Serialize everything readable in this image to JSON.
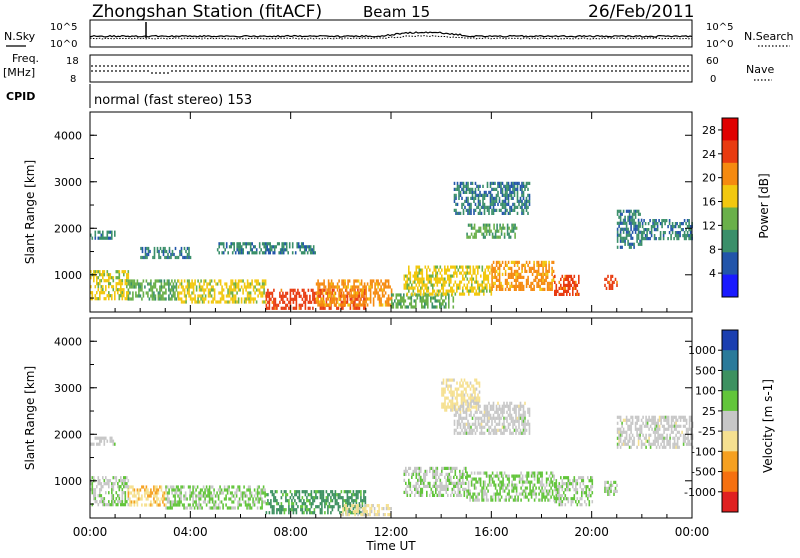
{
  "header": {
    "station": "Zhongshan Station (fitACF)",
    "beam": "Beam 15",
    "date": "26/Feb/2011"
  },
  "top_panel": {
    "noise_left_label": "N.Sky",
    "noise_right_label": "N.Search",
    "noise_ticks_left": [
      "10^5",
      "10^0"
    ],
    "noise_ticks_right": [
      "10^5",
      "10^0"
    ],
    "freq_label": "Freq.",
    "freq_unit": "[MHz]",
    "freq_ticks": [
      "18",
      "8"
    ],
    "nave_label": "Nave",
    "nave_ticks": [
      "60",
      "0"
    ],
    "cpid_label": "CPID",
    "cpid_text": "normal (fast stereo) 153"
  },
  "x_axis": {
    "label": "Time UT",
    "ticks": [
      "00:00",
      "04:00",
      "08:00",
      "12:00",
      "16:00",
      "20:00",
      "00:00"
    ]
  },
  "colors": {
    "power_scale": [
      "#1a1aff",
      "#2255aa",
      "#3a8f6a",
      "#6ab04a",
      "#f2c80f",
      "#f58a10",
      "#e83b10",
      "#e00000"
    ],
    "velocity_scale": [
      "#1b3fb0",
      "#2a7a9a",
      "#3d9160",
      "#62c53a",
      "#c7c7c7",
      "#f5e090",
      "#f5a020",
      "#f57010",
      "#e02020"
    ]
  },
  "chart_data": [
    {
      "type": "heatmap",
      "title": "",
      "quantity": "Power",
      "xlabel": "Time UT",
      "ylabel": "Slant Range [km]",
      "xlim": [
        0,
        24
      ],
      "ylim": [
        200,
        4500
      ],
      "yticks": [
        "1000",
        "2000",
        "3000",
        "4000"
      ],
      "colorbar": {
        "label": "Power [dB]",
        "ticks": [
          "4",
          "8",
          "12",
          "16",
          "20",
          "24",
          "28"
        ],
        "range": [
          0,
          30
        ]
      },
      "regions": [
        {
          "t": [
            0.0,
            1.0
          ],
          "range": [
            1800,
            1950
          ],
          "value": 8
        },
        {
          "t": [
            0.0,
            1.5
          ],
          "range": [
            500,
            1100
          ],
          "value": 16
        },
        {
          "t": [
            1.5,
            3.5
          ],
          "range": [
            450,
            900
          ],
          "value": 12
        },
        {
          "t": [
            2.0,
            4.0
          ],
          "range": [
            1400,
            1600
          ],
          "value": 8
        },
        {
          "t": [
            3.5,
            7.0
          ],
          "range": [
            400,
            900
          ],
          "value": 16
        },
        {
          "t": [
            5.0,
            9.0
          ],
          "range": [
            1500,
            1700
          ],
          "value": 8
        },
        {
          "t": [
            7.0,
            11.0
          ],
          "range": [
            250,
            700
          ],
          "value": 24
        },
        {
          "t": [
            9.0,
            12.0
          ],
          "range": [
            350,
            900
          ],
          "value": 20
        },
        {
          "t": [
            12.0,
            14.5
          ],
          "range": [
            300,
            600
          ],
          "value": 12
        },
        {
          "t": [
            12.5,
            16.0
          ],
          "range": [
            600,
            1200
          ],
          "value": 16
        },
        {
          "t": [
            14.5,
            17.5
          ],
          "range": [
            2300,
            3000
          ],
          "value": 8
        },
        {
          "t": [
            15.0,
            17.0
          ],
          "range": [
            1800,
            2100
          ],
          "value": 12
        },
        {
          "t": [
            16.0,
            18.5
          ],
          "range": [
            700,
            1300
          ],
          "value": 20
        },
        {
          "t": [
            18.5,
            19.5
          ],
          "range": [
            600,
            1000
          ],
          "value": 24
        },
        {
          "t": [
            20.5,
            21.0
          ],
          "range": [
            700,
            1000
          ],
          "value": 24
        },
        {
          "t": [
            21.0,
            22.0
          ],
          "range": [
            1600,
            2400
          ],
          "value": 8
        },
        {
          "t": [
            22.0,
            24.0
          ],
          "range": [
            1800,
            2200
          ],
          "value": 8
        }
      ]
    },
    {
      "type": "heatmap",
      "title": "",
      "quantity": "Velocity",
      "xlabel": "Time UT",
      "ylabel": "Slant Range [km]",
      "xlim": [
        0,
        24
      ],
      "ylim": [
        200,
        4500
      ],
      "yticks": [
        "1000",
        "2000",
        "3000",
        "4000"
      ],
      "colorbar": {
        "label": "Velocity [m s-1]",
        "ticks": [
          "1000",
          "500",
          "100",
          "25",
          "-25",
          "-100",
          "-500",
          "-1000"
        ],
        "range": [
          -1000,
          1000
        ]
      },
      "regions": [
        {
          "t": [
            0.0,
            1.0
          ],
          "range": [
            1800,
            1950
          ],
          "value": 0
        },
        {
          "t": [
            0.0,
            1.5
          ],
          "range": [
            500,
            1100
          ],
          "value": 100
        },
        {
          "t": [
            1.5,
            3.0
          ],
          "range": [
            450,
            900
          ],
          "value": -300
        },
        {
          "t": [
            3.0,
            7.0
          ],
          "range": [
            400,
            900
          ],
          "value": 150
        },
        {
          "t": [
            7.0,
            11.0
          ],
          "range": [
            300,
            800
          ],
          "value": 400
        },
        {
          "t": [
            10.0,
            12.0
          ],
          "range": [
            250,
            500
          ],
          "value": -150
        },
        {
          "t": [
            12.5,
            15.0
          ],
          "range": [
            700,
            1300
          ],
          "value": 80
        },
        {
          "t": [
            14.0,
            15.5
          ],
          "range": [
            2500,
            3200
          ],
          "value": -200
        },
        {
          "t": [
            14.5,
            17.5
          ],
          "range": [
            2000,
            2700
          ],
          "value": 0
        },
        {
          "t": [
            15.0,
            18.5
          ],
          "range": [
            600,
            1200
          ],
          "value": 150
        },
        {
          "t": [
            18.5,
            20.0
          ],
          "range": [
            500,
            1100
          ],
          "value": 100
        },
        {
          "t": [
            20.5,
            21.0
          ],
          "range": [
            700,
            1000
          ],
          "value": 100
        },
        {
          "t": [
            21.0,
            24.0
          ],
          "range": [
            1700,
            2400
          ],
          "value": 0
        }
      ]
    }
  ]
}
